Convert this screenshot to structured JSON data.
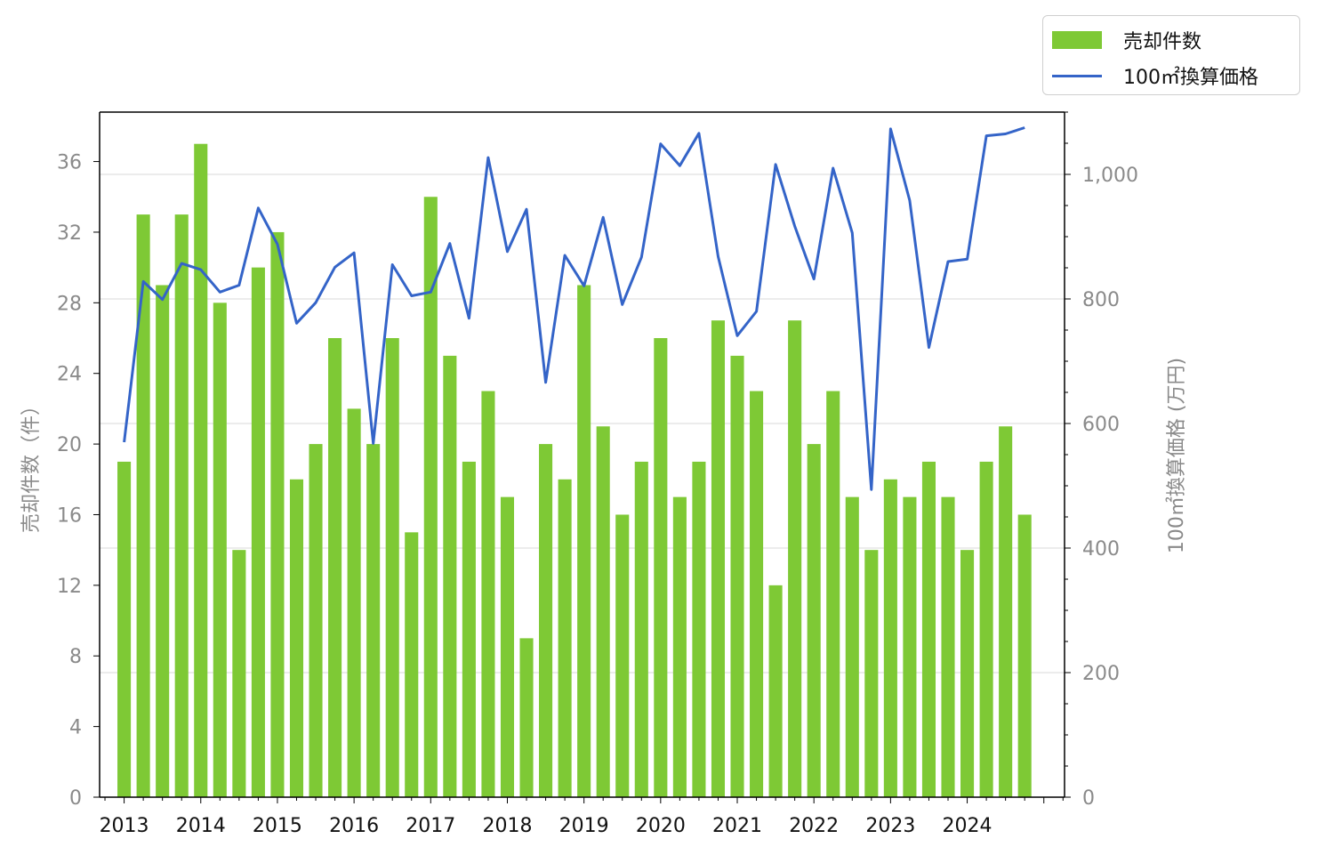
{
  "chart_data": {
    "type": "bar",
    "x_ticks": [
      "2013",
      "2014",
      "2015",
      "2016",
      "2017",
      "2018",
      "2019",
      "2020",
      "2021",
      "2022",
      "2023",
      "2024"
    ],
    "left_axis": {
      "label": "売却件数（件）",
      "ticks": [
        "0",
        "4",
        "8",
        "12",
        "16",
        "20",
        "24",
        "28",
        "32",
        "36"
      ],
      "ylim": [
        0,
        38.8
      ]
    },
    "right_axis": {
      "label": "100㎡換算価格 (万円)",
      "ticks": [
        "0",
        "200",
        "400",
        "600",
        "800",
        "1,000"
      ],
      "ylim": [
        0,
        1100
      ]
    },
    "grid": true,
    "legend_position": "top-right, outside plot",
    "series": [
      {
        "name": "売却件数",
        "type": "bar",
        "axis": "left",
        "color": "#7ec935",
        "x": [
          2013.0,
          2013.25,
          2013.5,
          2013.75,
          2014.0,
          2014.25,
          2014.5,
          2014.75,
          2015.0,
          2015.25,
          2015.5,
          2015.75,
          2016.0,
          2016.25,
          2016.5,
          2016.75,
          2017.0,
          2017.25,
          2017.5,
          2017.75,
          2018.0,
          2018.25,
          2018.5,
          2018.75,
          2019.0,
          2019.25,
          2019.5,
          2019.75,
          2020.0,
          2020.25,
          2020.5,
          2020.75,
          2021.0,
          2021.25,
          2021.5,
          2021.75,
          2022.0,
          2022.25,
          2022.5,
          2022.75,
          2023.0,
          2023.25,
          2023.5,
          2023.75,
          2024.0,
          2024.25,
          2024.5,
          2024.75
        ],
        "values": [
          19,
          33,
          29,
          33,
          37,
          28,
          14,
          30,
          32,
          18,
          20,
          26,
          22,
          20,
          26,
          15,
          34,
          25,
          19,
          23,
          17,
          9,
          20,
          18,
          29,
          21,
          16,
          19,
          26,
          17,
          19,
          27,
          25,
          23,
          12,
          27,
          20,
          23,
          17,
          14,
          18,
          17,
          19,
          17,
          14,
          19,
          21,
          16
        ]
      },
      {
        "name": "100㎡換算価格",
        "type": "line",
        "axis": "right",
        "color": "#3464c8",
        "x": [
          2013.0,
          2013.25,
          2013.5,
          2013.75,
          2014.0,
          2014.25,
          2014.5,
          2014.75,
          2015.0,
          2015.25,
          2015.5,
          2015.75,
          2016.0,
          2016.25,
          2016.5,
          2016.75,
          2017.0,
          2017.25,
          2017.5,
          2017.75,
          2018.0,
          2018.25,
          2018.5,
          2018.75,
          2019.0,
          2019.25,
          2019.5,
          2019.75,
          2020.0,
          2020.25,
          2020.5,
          2020.75,
          2021.0,
          2021.25,
          2021.5,
          2021.75,
          2022.0,
          2022.25,
          2022.5,
          2022.75,
          2023.0,
          2023.25,
          2023.5,
          2023.75,
          2024.0,
          2024.25,
          2024.5,
          2024.75
        ],
        "values": [
          570,
          828,
          799,
          857,
          847,
          811,
          822,
          946,
          888,
          761,
          794,
          851,
          874,
          568,
          855,
          805,
          811,
          889,
          769,
          1027,
          876,
          944,
          666,
          870,
          821,
          931,
          791,
          867,
          1049,
          1014,
          1066,
          868,
          741,
          780,
          1016,
          917,
          832,
          1010,
          906,
          494,
          1073,
          958,
          722,
          860,
          864,
          1062,
          1065,
          1075
        ]
      }
    ]
  }
}
